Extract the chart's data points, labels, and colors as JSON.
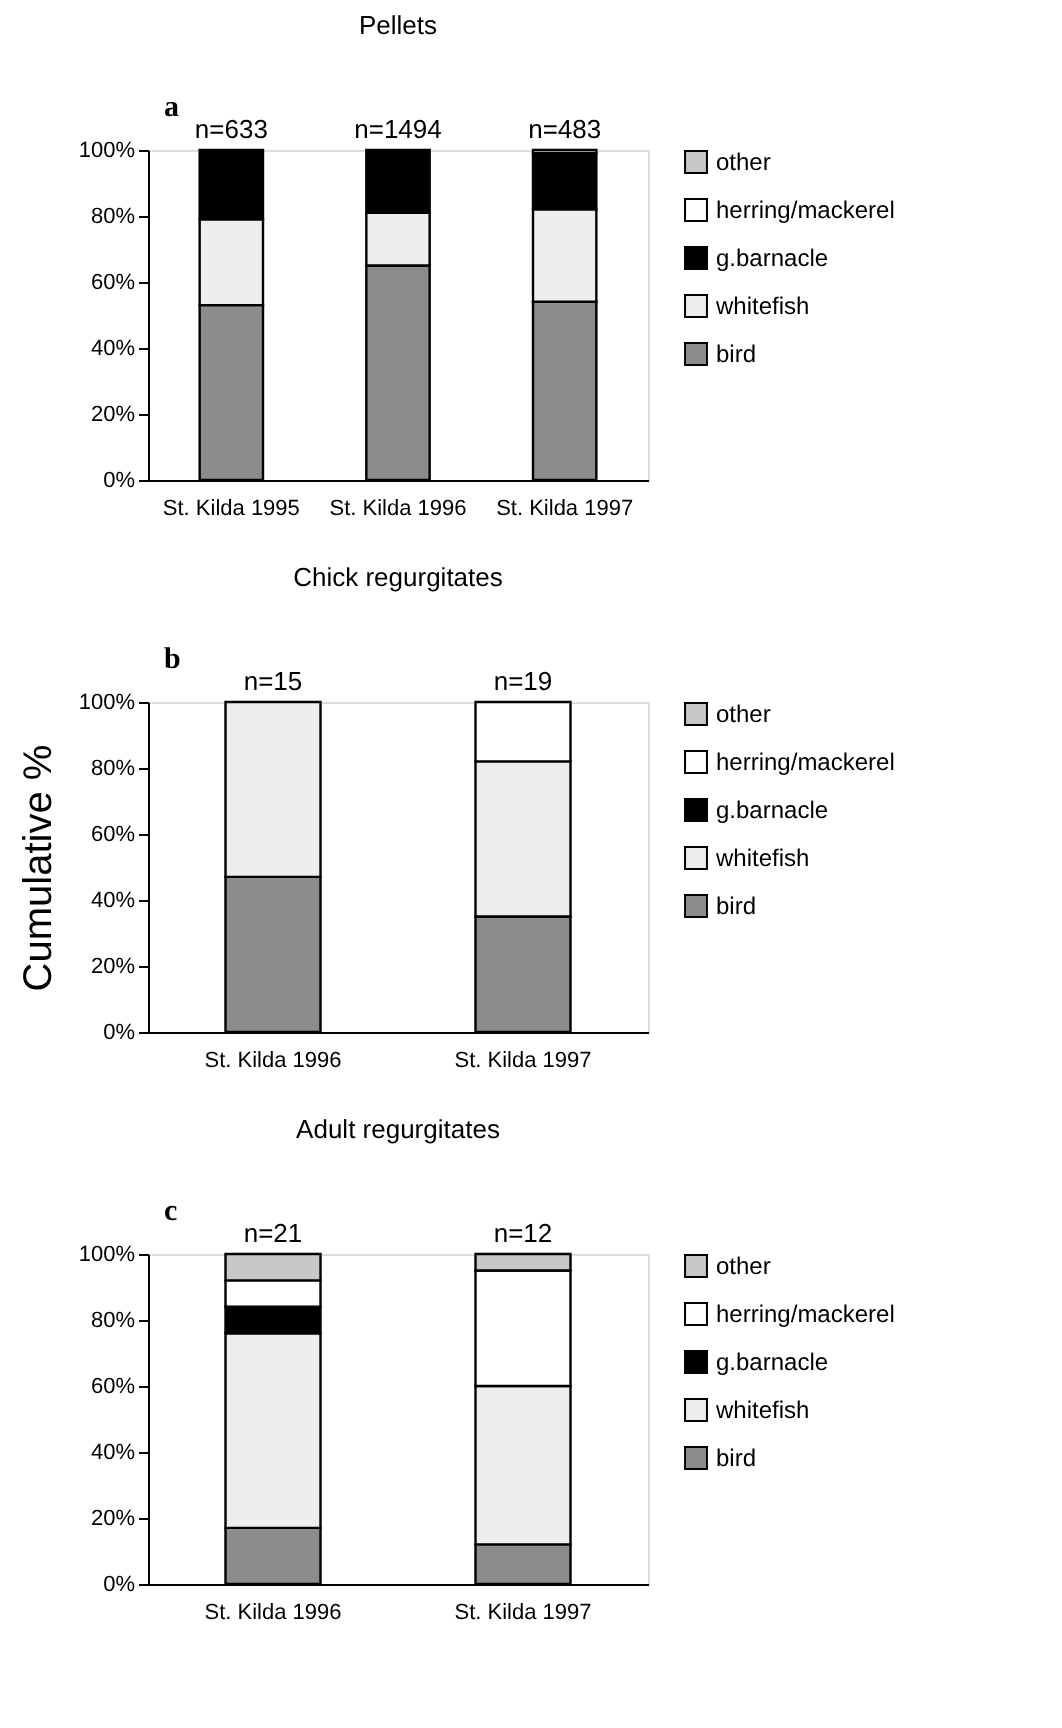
{
  "chart_data": [
    {
      "type": "bar",
      "title": "Pellets",
      "stacked": true,
      "categories": [
        "St. Kilda 1995",
        "St. Kilda 1996",
        "St. Kilda 1997"
      ],
      "ylim": [
        0,
        100
      ],
      "yticks": [
        {
          "value": 0,
          "label": "0%"
        },
        {
          "value": 20,
          "label": "20%"
        },
        {
          "value": 40,
          "label": "40%"
        },
        {
          "value": 60,
          "label": "60%"
        },
        {
          "value": 80,
          "label": "80%"
        },
        {
          "value": 100,
          "label": "100%"
        }
      ],
      "grid": false,
      "legend": "right",
      "series": [
        {
          "name": "bird",
          "color": "#8c8c8c",
          "values": [
            53,
            65,
            54
          ]
        },
        {
          "name": "whitefish",
          "color": "#eeeeee",
          "values": [
            26,
            16,
            28
          ]
        },
        {
          "name": "g.barnacle",
          "color": "#000000",
          "values": [
            21,
            19,
            17
          ]
        },
        {
          "name": "herring/mackerel",
          "color": "#ffffff",
          "values": [
            0,
            0,
            0
          ]
        },
        {
          "name": "other",
          "color": "#c8c8c8",
          "values": [
            0,
            0,
            1
          ]
        }
      ],
      "annotations": [
        "a",
        {
          "text": "n=633",
          "x": "St. Kilda 1995",
          "y": 100
        },
        {
          "text": "n=1494",
          "x": "St. Kilda 1996",
          "y": 100
        },
        {
          "text": "n=483",
          "x": "St. Kilda 1997",
          "y": 100
        }
      ]
    },
    {
      "type": "bar",
      "title": "Chick regurgitates",
      "ylabel": "Cumulative %",
      "stacked": true,
      "categories": [
        "St. Kilda 1996",
        "St. Kilda 1997"
      ],
      "ylim": [
        0,
        100
      ],
      "yticks": [
        {
          "value": 0,
          "label": "0%"
        },
        {
          "value": 20,
          "label": "20%"
        },
        {
          "value": 40,
          "label": "40%"
        },
        {
          "value": 60,
          "label": "60%"
        },
        {
          "value": 80,
          "label": "80%"
        },
        {
          "value": 100,
          "label": "100%"
        }
      ],
      "grid": false,
      "legend": "right",
      "series": [
        {
          "name": "bird",
          "color": "#8c8c8c",
          "values": [
            47,
            35
          ]
        },
        {
          "name": "whitefish",
          "color": "#eeeeee",
          "values": [
            53,
            47
          ]
        },
        {
          "name": "g.barnacle",
          "color": "#000000",
          "values": [
            0,
            0
          ]
        },
        {
          "name": "herring/mackerel",
          "color": "#ffffff",
          "values": [
            0,
            18
          ]
        },
        {
          "name": "other",
          "color": "#c8c8c8",
          "values": [
            0,
            0
          ]
        }
      ],
      "annotations": [
        "b",
        {
          "text": "n=15",
          "x": "St. Kilda 1996",
          "y": 100
        },
        {
          "text": "n=19",
          "x": "St. Kilda 1997",
          "y": 100
        }
      ]
    },
    {
      "type": "bar",
      "title": "Adult regurgitates",
      "stacked": true,
      "categories": [
        "St. Kilda 1996",
        "St. Kilda 1997"
      ],
      "ylim": [
        0,
        100
      ],
      "yticks": [
        {
          "value": 0,
          "label": "0%"
        },
        {
          "value": 20,
          "label": "20%"
        },
        {
          "value": 40,
          "label": "40%"
        },
        {
          "value": 60,
          "label": "60%"
        },
        {
          "value": 80,
          "label": "80%"
        },
        {
          "value": 100,
          "label": "100%"
        }
      ],
      "grid": false,
      "legend": "right",
      "series": [
        {
          "name": "bird",
          "color": "#8c8c8c",
          "values": [
            17,
            12
          ]
        },
        {
          "name": "whitefish",
          "color": "#eeeeee",
          "values": [
            59,
            48
          ]
        },
        {
          "name": "g.barnacle",
          "color": "#000000",
          "values": [
            8,
            0
          ]
        },
        {
          "name": "herring/mackerel",
          "color": "#ffffff",
          "values": [
            8,
            35
          ]
        },
        {
          "name": "other",
          "color": "#c8c8c8",
          "values": [
            8,
            5
          ]
        }
      ],
      "annotations": [
        "c",
        {
          "text": "n=21",
          "x": "St. Kilda 1996",
          "y": 100
        },
        {
          "text": "n=12",
          "x": "St. Kilda 1997",
          "y": 100
        }
      ]
    }
  ]
}
